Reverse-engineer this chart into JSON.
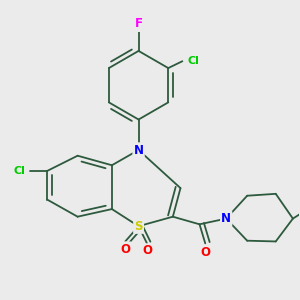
{
  "background_color": "#ebebeb",
  "bond_color": "#2d5a3d",
  "atom_colors": {
    "F": "#ff00ff",
    "Cl": "#00cc00",
    "N": "#0000ff",
    "S": "#cccc00",
    "O": "#ff0000",
    "C": "#2d5a3d"
  },
  "figsize": [
    3.0,
    3.0
  ],
  "dpi": 100
}
